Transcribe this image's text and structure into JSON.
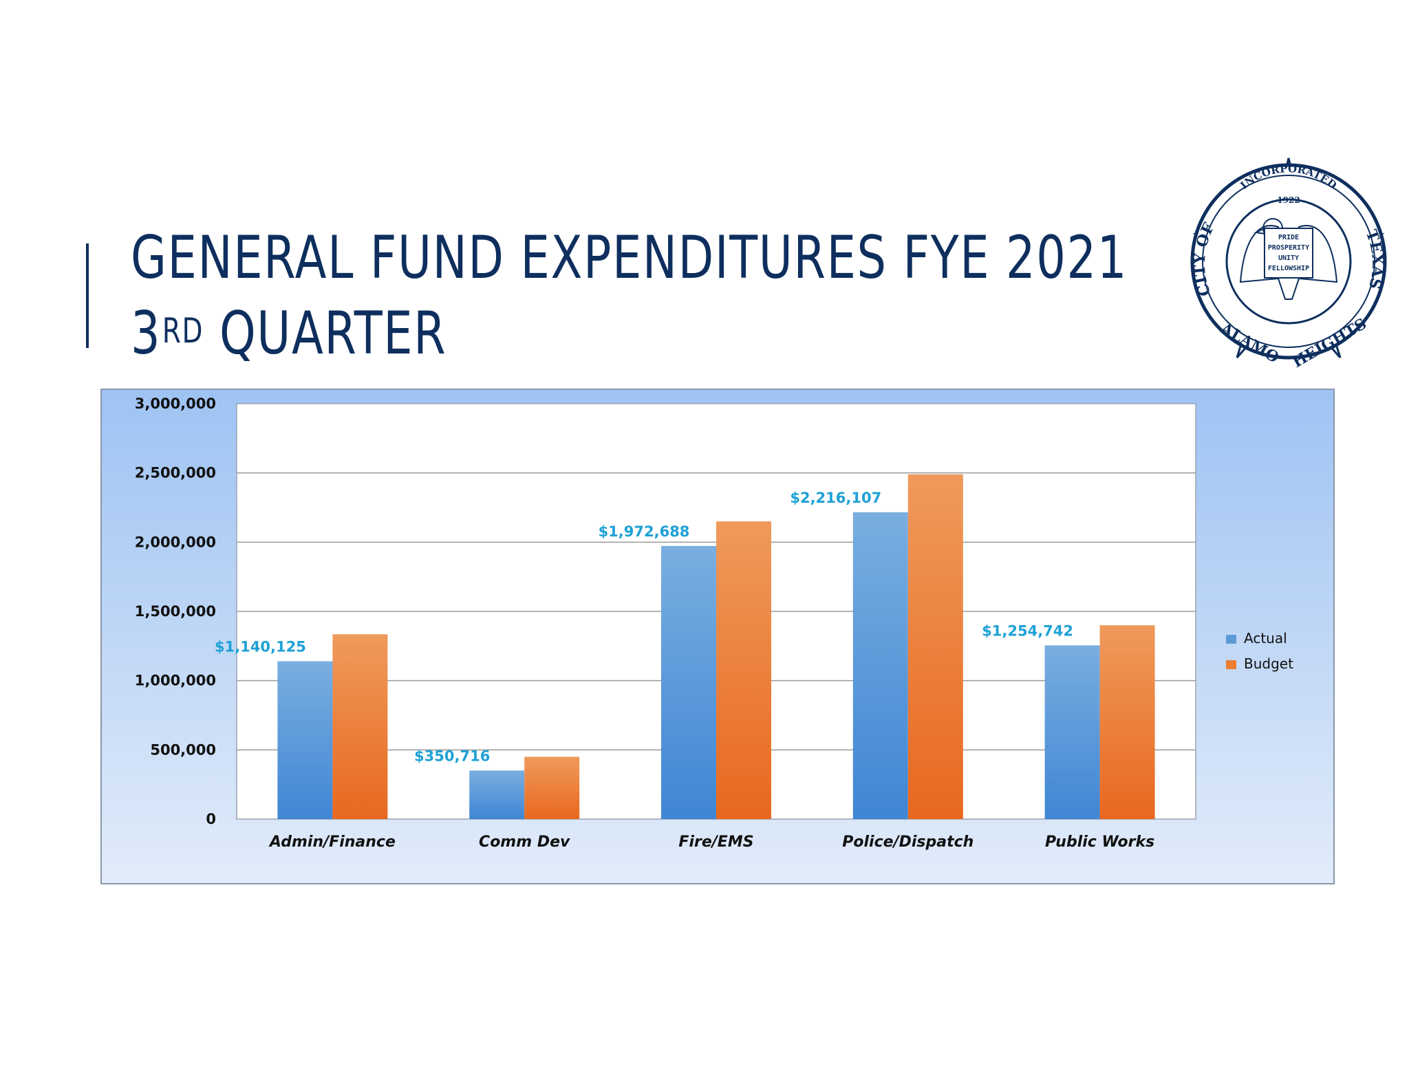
{
  "slide": {
    "title_line1": "GENERAL FUND EXPENDITURES FYE 2021",
    "title_line2_number": "3",
    "title_line2_suffix": "RD",
    "title_line2_word": "QUARTER",
    "title_color": "#0e2f5e"
  },
  "seal": {
    "ring_top": "INCORPORATED",
    "year": "1922",
    "left_text": "CITY OF",
    "right_text": "TEXAS",
    "bottom_left": "ALAMO",
    "bottom_right": "HEIGHTS",
    "banner": [
      "PRIDE",
      "PROSPERITY",
      "UNITY",
      "FELLOWSHIP"
    ],
    "icon": "eagle-icon"
  },
  "chart_data": {
    "type": "bar",
    "categories": [
      "Admin/Finance",
      "Comm Dev",
      "Fire/EMS",
      "Police/Dispatch",
      "Public Works"
    ],
    "series": [
      {
        "name": "Actual",
        "values": [
          1140125,
          350716,
          1972688,
          2216107,
          1254742
        ],
        "color": "#5b9bd5"
      },
      {
        "name": "Budget",
        "values": [
          1335000,
          450000,
          2150000,
          2490000,
          1400000
        ],
        "color": "#ed7d31"
      }
    ],
    "data_labels": [
      "$1,140,125",
      "$350,716",
      "$1,972,688",
      "$2,216,107",
      "$1,254,742"
    ],
    "data_label_color": "#1ea1d6",
    "y_ticks": [
      "0",
      "500,000",
      "1,000,000",
      "1,500,000",
      "2,000,000",
      "2,500,000",
      "3,000,000"
    ],
    "ylim": [
      0,
      3000000
    ],
    "grid": true,
    "legend_position": "right"
  }
}
